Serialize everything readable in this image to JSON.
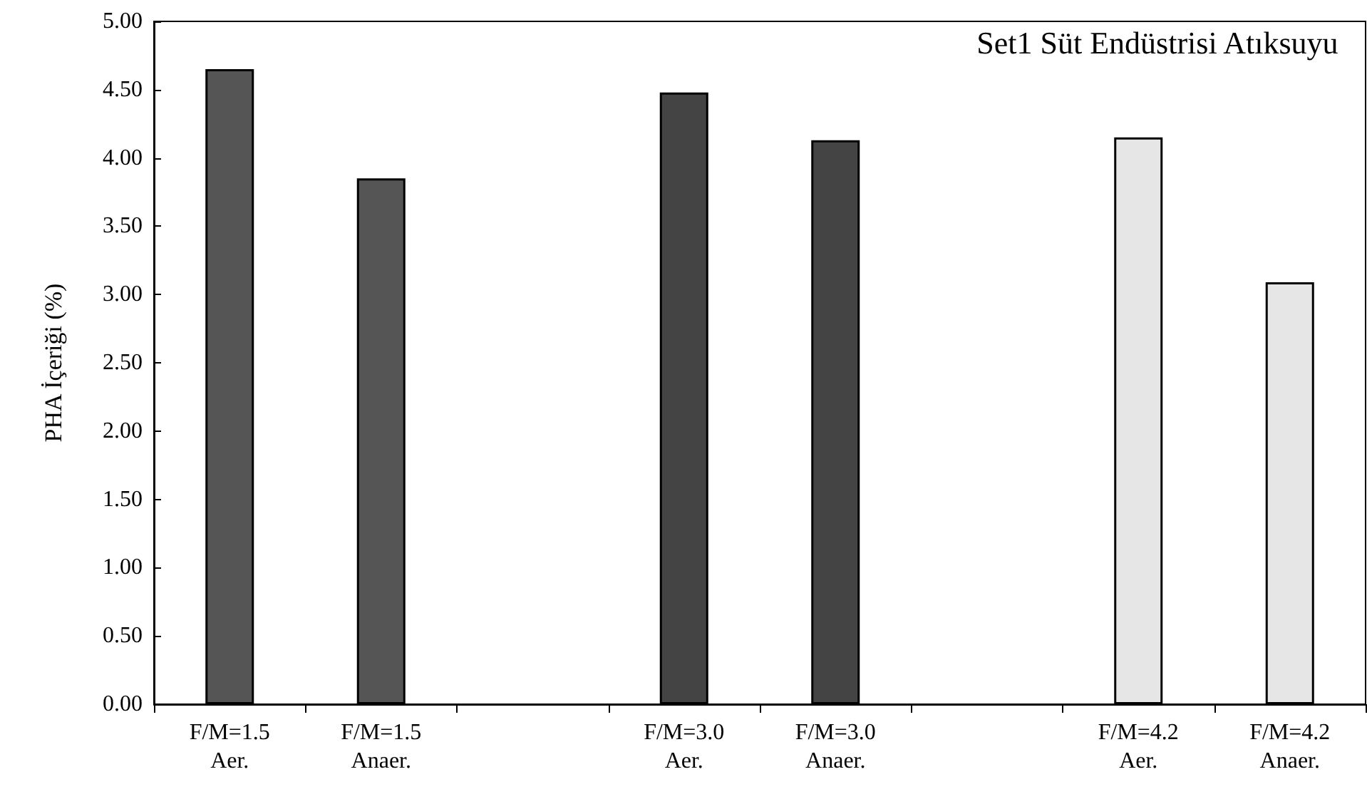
{
  "chart_data": {
    "type": "bar",
    "title": "Set1 Süt Endüstrisi Atıksuyu",
    "ylabel": "PHA İçeriği (%)",
    "categories": [
      "F/M=1.5\nAer.",
      "F/M=1.5\nAnaer.",
      null,
      "F/M=3.0\nAer.",
      "F/M=3.0\nAnaer.",
      null,
      "F/M=4.2\nAer.",
      "F/M=4.2\nAnaer."
    ],
    "values": [
      4.65,
      3.85,
      null,
      4.48,
      4.13,
      null,
      4.15,
      3.09
    ],
    "colors": [
      "#555555",
      "#555555",
      "#ffffff",
      "#444444",
      "#444444",
      "#ffffff",
      "#e6e6e6",
      "#e6e6e6"
    ],
    "ylim": [
      0,
      5
    ],
    "yticks": [
      {
        "value": 0,
        "label": "0.00"
      },
      {
        "value": 0.5,
        "label": "0.50"
      },
      {
        "value": 1,
        "label": "1.00"
      },
      {
        "value": 1.5,
        "label": "1.50"
      },
      {
        "value": 2,
        "label": "2.00"
      },
      {
        "value": 2.5,
        "label": "2.50"
      },
      {
        "value": 3,
        "label": "3.00"
      },
      {
        "value": 3.5,
        "label": "3.50"
      },
      {
        "value": 4,
        "label": "4.00"
      },
      {
        "value": 4.5,
        "label": "4.50"
      },
      {
        "value": 5,
        "label": "5.00"
      }
    ],
    "grid": false
  }
}
